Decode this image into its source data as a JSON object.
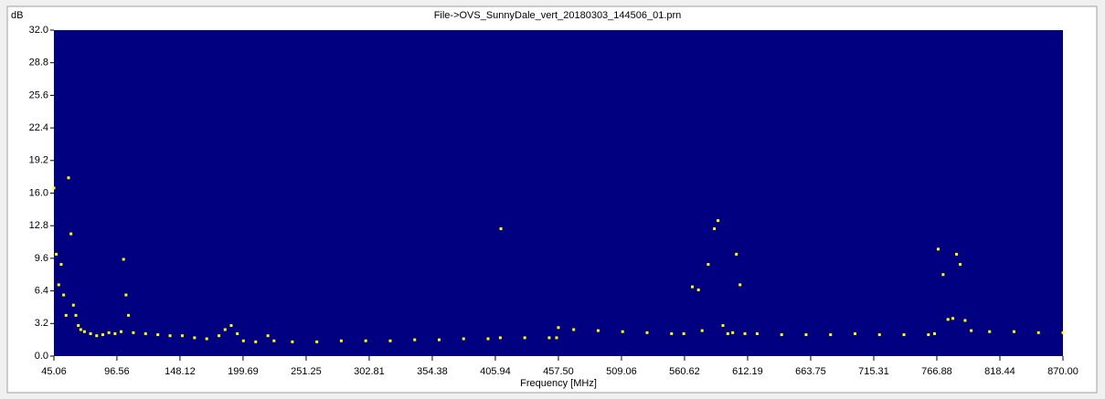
{
  "chart_data": {
    "type": "scatter",
    "title": "File->OVS_SunnyDale_vert_20180303_144506_01.prn",
    "y_label": "dB",
    "x_label": "Frequency [MHz]",
    "color": "#ffff00",
    "x": [
      45.06,
      47,
      49,
      51,
      53,
      55,
      57,
      59,
      61,
      63,
      65,
      67,
      70,
      75,
      80,
      85,
      90,
      95,
      100,
      102,
      104,
      106,
      110,
      120,
      130,
      140,
      150,
      160,
      170,
      180,
      185,
      190,
      195,
      200,
      210,
      220,
      225,
      240,
      260,
      280,
      300,
      320,
      340,
      360,
      380,
      400,
      410,
      410.5,
      430,
      450,
      456,
      457.5,
      470,
      490,
      510,
      530,
      550,
      560,
      567,
      572,
      575,
      580,
      585,
      588,
      592,
      596,
      600,
      603,
      606,
      610,
      620,
      640,
      660,
      680,
      700,
      720,
      740,
      760,
      765,
      768,
      772,
      776,
      780,
      783,
      786,
      790,
      795,
      810,
      830,
      850,
      870
    ],
    "values": [
      16.5,
      10,
      7,
      9,
      6,
      4,
      17.5,
      12,
      5,
      4,
      3,
      2.6,
      2.4,
      2.2,
      2.0,
      2.1,
      2.3,
      2.2,
      2.4,
      9.5,
      6,
      4,
      2.3,
      2.2,
      2.1,
      2.0,
      2.0,
      1.8,
      1.7,
      2.0,
      2.6,
      3.0,
      2.2,
      1.5,
      1.4,
      2.0,
      1.5,
      1.4,
      1.4,
      1.5,
      1.5,
      1.5,
      1.6,
      1.6,
      1.7,
      1.7,
      1.8,
      12.5,
      1.8,
      1.8,
      1.8,
      2.8,
      2.6,
      2.5,
      2.4,
      2.3,
      2.2,
      2.2,
      6.8,
      6.5,
      2.5,
      9,
      12.5,
      13.3,
      3.0,
      2.2,
      2.3,
      10,
      7,
      2.2,
      2.2,
      2.1,
      2.1,
      2.1,
      2.2,
      2.1,
      2.1,
      2.1,
      2.2,
      10.5,
      8,
      3.6,
      3.7,
      10,
      9,
      3.5,
      2.5,
      2.4,
      2.4,
      2.3,
      2.3
    ],
    "xlim": [
      45.06,
      870
    ],
    "xticks": [
      45.06,
      96.56,
      148.12,
      199.69,
      251.25,
      302.81,
      354.38,
      405.94,
      {
        "value": 457.5,
        "label": "457.50"
      },
      509.06,
      560.62,
      612.19,
      663.75,
      715.31,
      766.88,
      818.44,
      {
        "value": 870,
        "label": "870.00"
      }
    ],
    "ylim": [
      0,
      32
    ],
    "yticks": [
      {
        "value": 0,
        "label": "0.0"
      },
      3.2,
      6.4,
      9.6,
      12.8,
      {
        "value": 16,
        "label": "16.0"
      },
      19.2,
      22.4,
      25.6,
      28.8,
      {
        "value": 32,
        "label": "32.0"
      }
    ]
  }
}
